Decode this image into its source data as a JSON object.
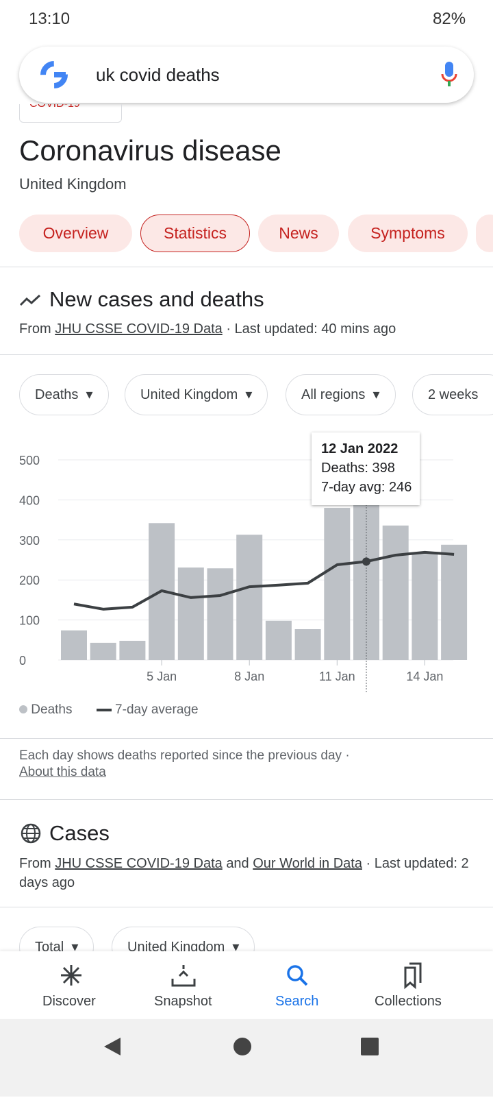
{
  "status_bar": {
    "time": "13:10",
    "battery": "82%"
  },
  "search": {
    "query": "uk covid deaths"
  },
  "header": {
    "chip": "COVID-19",
    "title": "Coronavirus disease",
    "subtitle": "United Kingdom"
  },
  "tabs": [
    "Overview",
    "Statistics",
    "News",
    "Symptoms"
  ],
  "section": {
    "title": "New cases and deaths",
    "source_prefix": "From",
    "source_link": "JHU CSSE COVID-19 Data",
    "source_suffix": "· Last updated: 40 mins ago"
  },
  "filters": [
    "Deaths",
    "United Kingdom",
    "All regions",
    "2 weeks"
  ],
  "tooltip": {
    "title": "12 Jan 2022",
    "lines": [
      "Deaths: 398",
      "7-day avg: 246"
    ]
  },
  "chart_data": {
    "type": "bar",
    "categories": [
      null,
      null,
      null,
      "5 Jan",
      null,
      null,
      "8 Jan",
      null,
      null,
      "11 Jan",
      null,
      null,
      "14 Jan",
      null
    ],
    "series": [
      {
        "name": "Deaths",
        "type": "bar",
        "color": "#bdc1c6",
        "values": [
          74,
          43,
          48,
          342,
          231,
          229,
          313,
          98,
          77,
          380,
          398,
          336,
          265,
          288
        ]
      },
      {
        "name": "7-day average",
        "type": "line",
        "color": "#3c4043",
        "values": [
          140,
          127,
          132,
          173,
          156,
          161,
          183,
          187,
          192,
          238,
          246,
          262,
          269,
          264
        ]
      }
    ],
    "ylim": [
      0,
      500
    ],
    "yticks": [
      0,
      100,
      200,
      300,
      400,
      500
    ],
    "grid": true
  },
  "note": {
    "text": "Each day shows deaths reported since the previous day ·",
    "link": "About this data"
  },
  "cases": {
    "title": "Cases",
    "from": "From",
    "link1": "JHU CSSE COVID-19 Data",
    "and": "and",
    "link2": "Our World in Data",
    "suffix": "· Last updated: 2 days ago",
    "filters": [
      "Total",
      "United Kingdom"
    ]
  },
  "bottom_nav": [
    "Discover",
    "Snapshot",
    "Search",
    "Collections"
  ]
}
